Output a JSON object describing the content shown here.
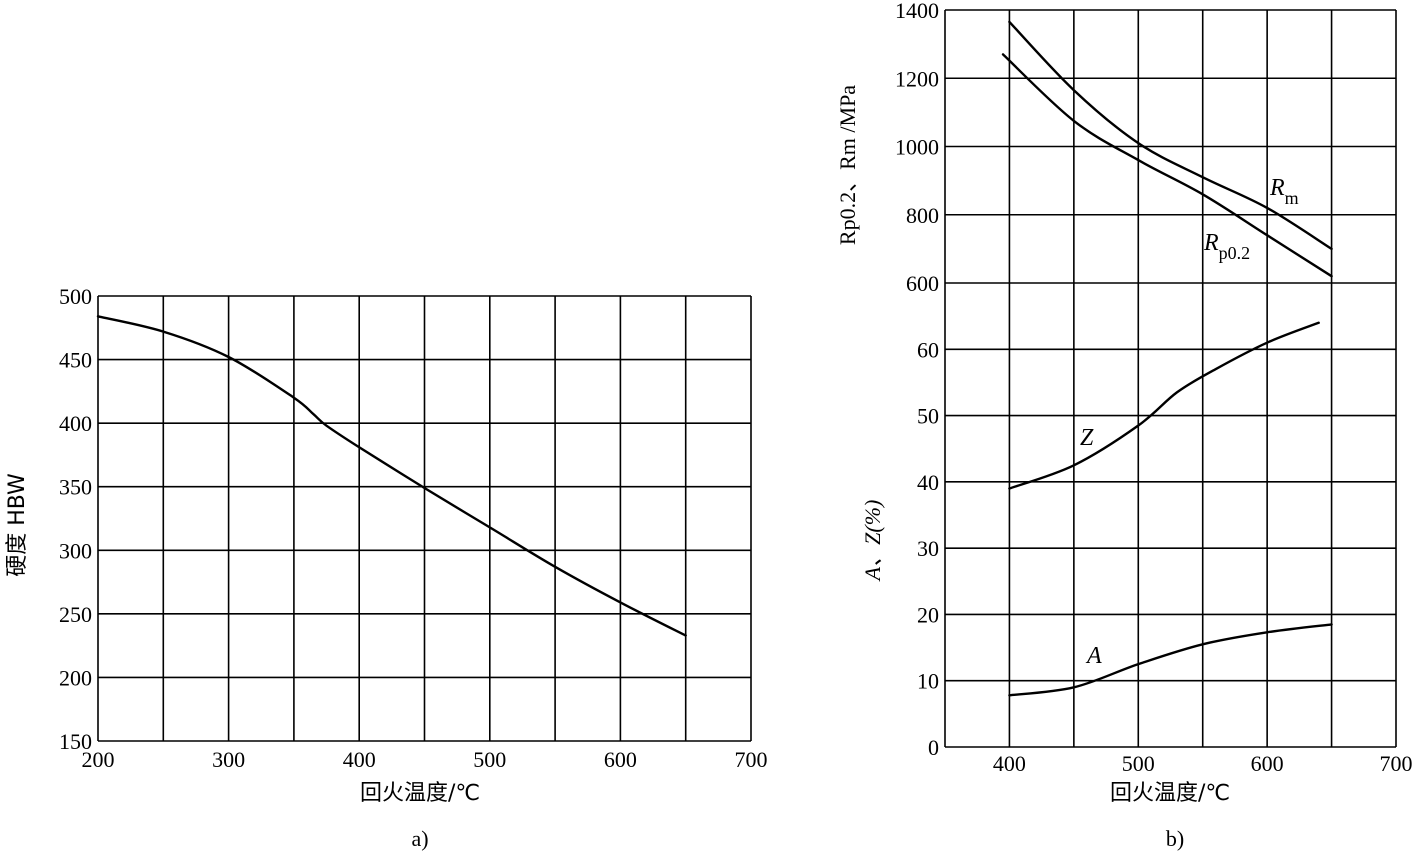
{
  "chart_data": [
    {
      "type": "line",
      "caption": "a)",
      "xlabel": "回火温度/℃",
      "ylabel": "硬度  HBW",
      "xlim": [
        200,
        700
      ],
      "ylim": [
        150,
        500
      ],
      "xticks": [
        "200",
        "300",
        "400",
        "500",
        "600",
        "700"
      ],
      "yticks": [
        "150",
        "200",
        "250",
        "300",
        "350",
        "400",
        "450",
        "500"
      ],
      "grid": true,
      "series": [
        {
          "x": [
            200,
            250,
            300,
            350,
            365,
            375,
            400,
            450,
            500,
            550,
            600,
            650
          ],
          "y": [
            484,
            472,
            452,
            420,
            407,
            398,
            381,
            349,
            318,
            287,
            259,
            233
          ]
        }
      ]
    },
    {
      "type": "line",
      "caption": "b)",
      "xlabel": "回火温度/℃",
      "ylabel_upper": "Rp0.2、Rm /MPa",
      "ylabel_lower": "A、Z(%)",
      "xlim": [
        350,
        700
      ],
      "xticks": [
        "400",
        "500",
        "600",
        "700"
      ],
      "yticks_lower": [
        "0",
        "10",
        "20",
        "30",
        "40",
        "50",
        "60"
      ],
      "yticks_upper": [
        "600",
        "800",
        "1000",
        "1200",
        "1400"
      ],
      "upper_range": [
        600,
        1400
      ],
      "lower_range": [
        0,
        70
      ],
      "grid": true,
      "series": [
        {
          "name": "Rm",
          "axis": "upper",
          "x": [
            400,
            450,
            500,
            550,
            600,
            650
          ],
          "y": [
            1365,
            1165,
            1010,
            910,
            820,
            700
          ]
        },
        {
          "name": "Rp0.2",
          "axis": "upper",
          "x": [
            395,
            450,
            500,
            550,
            600,
            650
          ],
          "y": [
            1270,
            1075,
            960,
            860,
            740,
            620
          ]
        },
        {
          "name": "Z",
          "axis": "lower",
          "x": [
            400,
            450,
            500,
            530,
            560,
            600,
            640
          ],
          "y": [
            39,
            42.5,
            48.5,
            53.5,
            57,
            61,
            64
          ]
        },
        {
          "name": "A",
          "axis": "lower",
          "x": [
            400,
            450,
            500,
            550,
            600,
            650
          ],
          "y": [
            7.8,
            9,
            12.5,
            15.5,
            17.3,
            18.5
          ]
        }
      ]
    }
  ],
  "series_labels": {
    "rm": {
      "main": "R",
      "sub": "m"
    },
    "rp": {
      "main": "R",
      "sub": "p0.2"
    },
    "z": "Z",
    "a": "A"
  }
}
